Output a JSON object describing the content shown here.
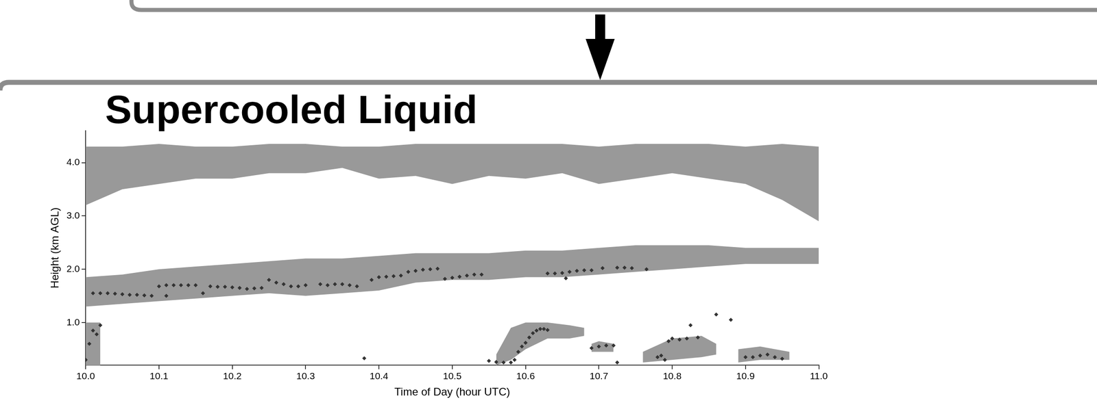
{
  "chart_data": {
    "type": "scatter",
    "title": "Supercooled Liquid",
    "x_label": "Time of Day (hour UTC)",
    "y_label": "Height (km AGL)",
    "xlim": [
      10,
      11
    ],
    "xticks": [
      {
        "value": 10,
        "label": "10.0"
      },
      10.1,
      10.2,
      10.3,
      10.4,
      10.5,
      10.6,
      10.7,
      10.8,
      10.9,
      {
        "value": 11,
        "label": "11.0"
      }
    ],
    "ylim": [
      0.2,
      4.6
    ],
    "yticks": [
      {
        "value": 1,
        "label": "1.0"
      },
      {
        "value": 2,
        "label": "2.0"
      },
      {
        "value": 3,
        "label": "3.0"
      },
      {
        "value": 4,
        "label": "4.0"
      }
    ],
    "grid": false,
    "series": [
      {
        "type": "area",
        "color": "#999999",
        "x": [
          10,
          10.05,
          10.1,
          10.15,
          10.2,
          10.25,
          10.3,
          10.35,
          10.4,
          10.45,
          10.5,
          10.55,
          10.6,
          10.65,
          10.7,
          10.75,
          10.8,
          10.85,
          10.9,
          10.95,
          11
        ],
        "lower": [
          3.2,
          3.5,
          3.6,
          3.7,
          3.7,
          3.8,
          3.8,
          3.9,
          3.7,
          3.75,
          3.6,
          3.75,
          3.7,
          3.8,
          3.6,
          3.7,
          3.8,
          3.7,
          3.6,
          3.3,
          2.9
        ],
        "upper": [
          4.3,
          4.3,
          4.35,
          4.3,
          4.3,
          4.35,
          4.35,
          4.3,
          4.3,
          4.35,
          4.35,
          4.35,
          4.35,
          4.35,
          4.3,
          4.35,
          4.35,
          4.35,
          4.3,
          4.35,
          4.3
        ]
      },
      {
        "type": "area",
        "color": "#999999",
        "x": [
          10,
          10.05,
          10.1,
          10.15,
          10.2,
          10.25,
          10.3,
          10.35,
          10.4,
          10.45,
          10.5,
          10.55,
          10.6,
          10.65,
          10.7,
          10.75,
          10.8,
          10.85,
          10.9,
          10.95,
          11
        ],
        "lower": [
          1.3,
          1.35,
          1.4,
          1.45,
          1.5,
          1.55,
          1.5,
          1.55,
          1.6,
          1.75,
          1.8,
          1.8,
          1.85,
          1.85,
          1.9,
          1.95,
          2.0,
          2.05,
          2.1,
          2.1,
          2.1
        ],
        "upper": [
          1.85,
          1.9,
          2.0,
          2.05,
          2.1,
          2.15,
          2.2,
          2.2,
          2.25,
          2.3,
          2.3,
          2.3,
          2.35,
          2.35,
          2.4,
          2.45,
          2.45,
          2.45,
          2.4,
          2.4,
          2.4
        ]
      },
      {
        "type": "area",
        "color": "#999999",
        "x": [
          10,
          10.02
        ],
        "lower": [
          0.2,
          0.2
        ],
        "upper": [
          1.0,
          1.0
        ]
      },
      {
        "type": "area",
        "color": "#999999",
        "x": [
          10.56,
          10.58,
          10.6,
          10.63,
          10.66,
          10.68
        ],
        "lower": [
          0.2,
          0.3,
          0.5,
          0.7,
          0.7,
          0.75
        ],
        "upper": [
          0.4,
          0.9,
          1.0,
          1.0,
          0.95,
          0.9
        ]
      },
      {
        "type": "area",
        "color": "#999999",
        "x": [
          10.69,
          10.7,
          10.72
        ],
        "lower": [
          0.45,
          0.45,
          0.45
        ],
        "upper": [
          0.6,
          0.65,
          0.6
        ]
      },
      {
        "type": "area",
        "color": "#999999",
        "x": [
          10.76,
          10.8,
          10.84,
          10.86
        ],
        "lower": [
          0.25,
          0.3,
          0.35,
          0.4
        ],
        "upper": [
          0.45,
          0.7,
          0.75,
          0.6
        ]
      },
      {
        "type": "area",
        "color": "#999999",
        "x": [
          10.89,
          10.92,
          10.96
        ],
        "lower": [
          0.25,
          0.3,
          0.3
        ],
        "upper": [
          0.5,
          0.55,
          0.45
        ]
      },
      {
        "type": "scatter",
        "color": "#333333",
        "marker": "diamond",
        "x": [
          10.01,
          10.02,
          10.03,
          10.04,
          10.05,
          10.06,
          10.07,
          10.08,
          10.09,
          10.11,
          10.1,
          10.11,
          10.12,
          10.13,
          10.14,
          10.15,
          10.16,
          10.17,
          10.18,
          10.19,
          10.2,
          10.21,
          10.22,
          10.23,
          10.24,
          10.25,
          10.26,
          10.27,
          10.28,
          10.29,
          10.3,
          10.32,
          10.33,
          10.34,
          10.35,
          10.36,
          10.37,
          10.39,
          10.4,
          10.41,
          10.42,
          10.43,
          10.44,
          10.45,
          10.46,
          10.47,
          10.48,
          10.49,
          10.5,
          10.51,
          10.52,
          10.53,
          10.54,
          10.63,
          10.64,
          10.65,
          10.655,
          10.66,
          10.67,
          10.68,
          10.69,
          10.705,
          10.725,
          10.735,
          10.745,
          10.765,
          10.0,
          10.005,
          10.01,
          10.015,
          10.02,
          10.38,
          10.55,
          10.56,
          10.57,
          10.58,
          10.585,
          10.59,
          10.595,
          10.6,
          10.605,
          10.61,
          10.615,
          10.62,
          10.625,
          10.63,
          10.69,
          10.7,
          10.71,
          10.72,
          10.725,
          10.78,
          10.785,
          10.79,
          10.795,
          10.8,
          10.81,
          10.82,
          10.825,
          10.835,
          10.86,
          10.88,
          10.9,
          10.91,
          10.92,
          10.93,
          10.94,
          10.95
        ],
        "values": [
          1.55,
          1.55,
          1.55,
          1.54,
          1.53,
          1.52,
          1.52,
          1.51,
          1.5,
          1.5,
          1.68,
          1.7,
          1.7,
          1.7,
          1.7,
          1.7,
          1.55,
          1.68,
          1.67,
          1.67,
          1.66,
          1.65,
          1.63,
          1.64,
          1.65,
          1.8,
          1.75,
          1.72,
          1.68,
          1.68,
          1.7,
          1.72,
          1.7,
          1.72,
          1.72,
          1.7,
          1.68,
          1.8,
          1.85,
          1.86,
          1.87,
          1.88,
          1.95,
          1.97,
          1.99,
          2.0,
          2.01,
          1.82,
          1.84,
          1.86,
          1.88,
          1.9,
          1.9,
          1.92,
          1.92,
          1.93,
          1.83,
          1.95,
          1.97,
          1.98,
          1.98,
          2.02,
          2.03,
          2.03,
          2.02,
          2.0,
          0.3,
          0.6,
          0.85,
          0.78,
          0.95,
          0.33,
          0.28,
          0.26,
          0.25,
          0.25,
          0.3,
          0.45,
          0.55,
          0.62,
          0.72,
          0.8,
          0.85,
          0.88,
          0.88,
          0.86,
          0.52,
          0.55,
          0.57,
          0.57,
          0.25,
          0.35,
          0.38,
          0.3,
          0.65,
          0.7,
          0.68,
          0.7,
          0.95,
          0.72,
          1.15,
          1.05,
          0.35,
          0.35,
          0.38,
          0.4,
          0.35,
          0.32
        ]
      }
    ]
  }
}
